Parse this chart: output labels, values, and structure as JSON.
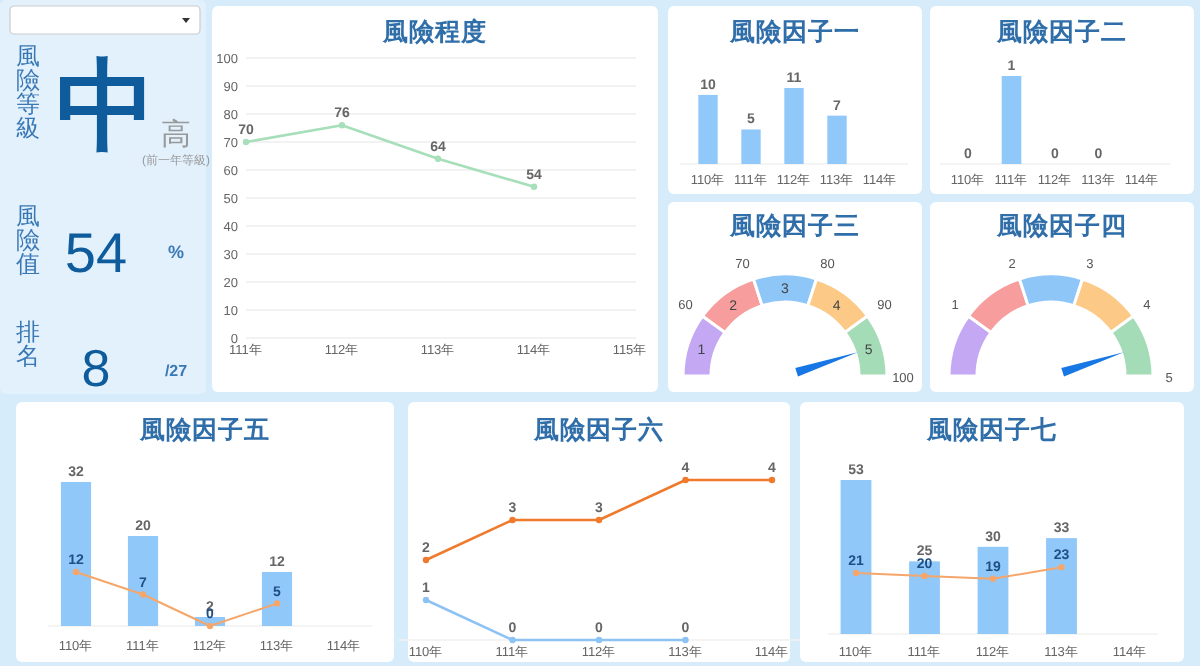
{
  "chart_data": [
    {
      "type": "other",
      "annotations": [
        "風險等級",
        "中",
        "高",
        "(前一年等級)",
        "風險值",
        "54",
        "%",
        "排名",
        "8",
        "/27"
      ]
    },
    {
      "type": "line",
      "title": "風險程度",
      "categories": [
        "111年",
        "112年",
        "113年",
        "114年",
        "115年"
      ],
      "ylim": [
        0,
        100
      ],
      "yticks": [
        0,
        10,
        20,
        30,
        40,
        50,
        60,
        70,
        80,
        90,
        100
      ],
      "grid": "y",
      "marker": "circle",
      "data_labels": true,
      "series": [
        {
          "color": "#a6dfb9",
          "values": [
            70,
            76,
            64,
            54,
            null
          ]
        }
      ]
    },
    {
      "type": "bar",
      "title": "風險因子一",
      "categories": [
        "110年",
        "111年",
        "112年",
        "113年",
        "114年"
      ],
      "data_labels": true,
      "series": [
        {
          "color": "#91c8fa",
          "values": [
            10,
            5,
            11,
            7,
            null
          ]
        }
      ]
    },
    {
      "type": "bar",
      "title": "風險因子二",
      "categories": [
        "110年",
        "111年",
        "112年",
        "113年",
        "114年"
      ],
      "data_labels": true,
      "series": [
        {
          "color": "#91c8fa",
          "values": [
            0,
            1,
            0,
            0,
            null
          ]
        }
      ]
    },
    {
      "type": "donut",
      "title": "風險因子三",
      "categories": [
        "1",
        "2",
        "3",
        "4",
        "5"
      ],
      "values": [
        20,
        20,
        20,
        20,
        20
      ],
      "colors": [
        "#c5a8f3",
        "#f79d9d",
        "#8fc6f8",
        "#fcc986",
        "#a3dcb6"
      ],
      "needle": "5",
      "annotations": [
        "60",
        "70",
        "80",
        "90",
        "100"
      ]
    },
    {
      "type": "donut",
      "title": "風險因子四",
      "categories": [
        "1",
        "2",
        "3",
        "4",
        "5"
      ],
      "values": [
        20,
        20,
        20,
        20,
        20
      ],
      "colors": [
        "#c5a8f3",
        "#f79d9d",
        "#8fc6f8",
        "#fcc986",
        "#a3dcb6"
      ],
      "needle": "5"
    },
    {
      "type": "bar",
      "title": "風險因子五",
      "categories": [
        "110年",
        "111年",
        "112年",
        "113年",
        "114年"
      ],
      "data_labels": true,
      "series": [
        {
          "type": "bar",
          "color": "#91c8fa",
          "values": [
            32,
            20,
            2,
            12,
            null
          ]
        },
        {
          "type": "line",
          "color": "#f5a66b",
          "marker": "circle",
          "values": [
            12,
            7,
            0,
            5,
            null
          ]
        }
      ]
    },
    {
      "type": "line",
      "title": "風險因子六",
      "categories": [
        "110年",
        "111年",
        "112年",
        "113年",
        "114年"
      ],
      "data_labels": true,
      "marker": "circle",
      "series": [
        {
          "color": "#f07a2c",
          "values": [
            2,
            3,
            3,
            4,
            4
          ]
        },
        {
          "color": "#8dc2f5",
          "values": [
            1,
            0,
            0,
            0,
            null
          ]
        }
      ]
    },
    {
      "type": "bar",
      "title": "風險因子七",
      "categories": [
        "110年",
        "111年",
        "112年",
        "113年",
        "114年"
      ],
      "data_labels": true,
      "series": [
        {
          "type": "bar",
          "color": "#91c8fa",
          "values": [
            53,
            25,
            30,
            33,
            null
          ]
        },
        {
          "type": "line",
          "color": "#f5a66b",
          "marker": "circle",
          "values": [
            21,
            20,
            19,
            23,
            null
          ]
        }
      ]
    }
  ]
}
